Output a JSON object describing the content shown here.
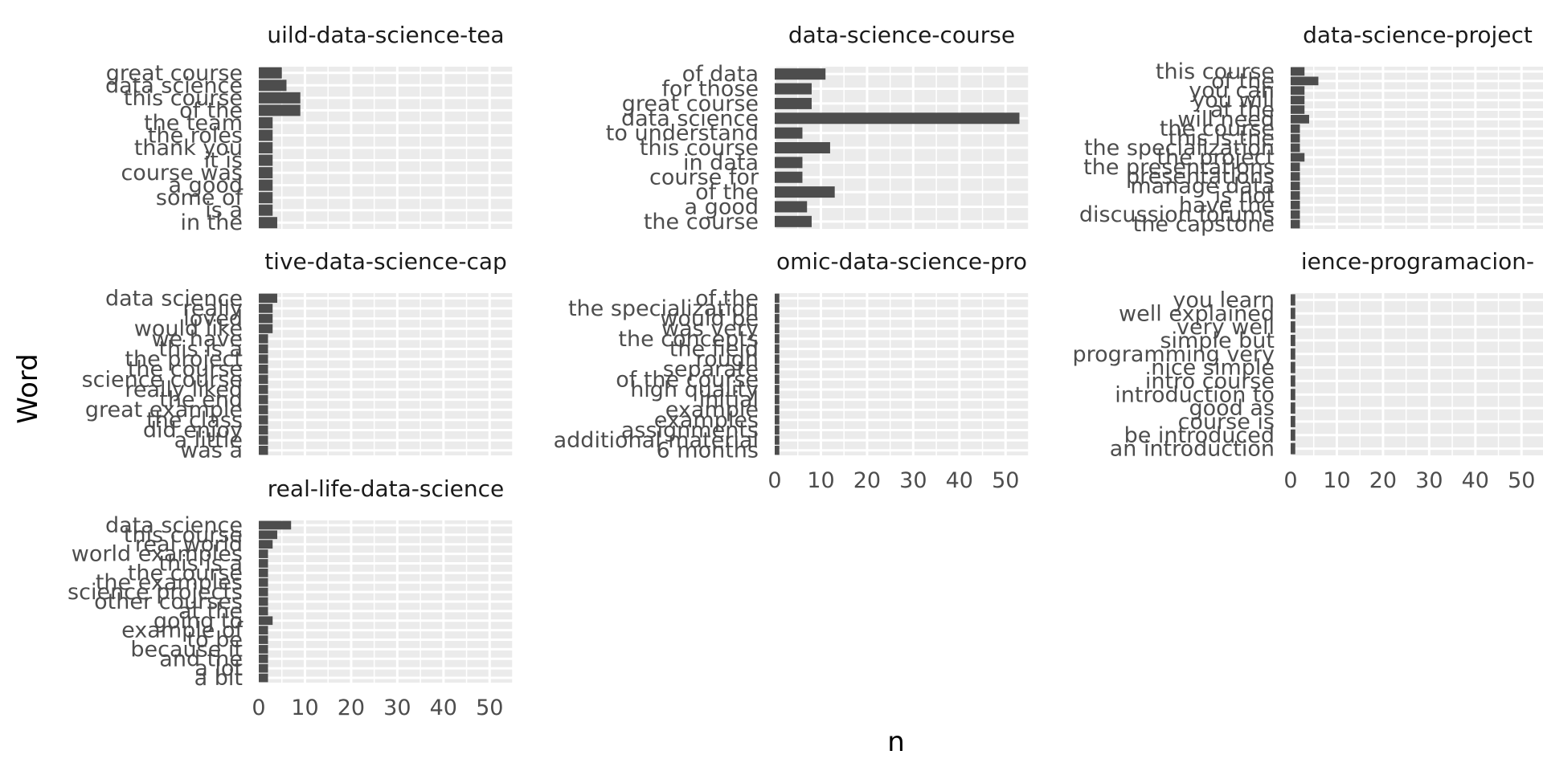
{
  "colors": {
    "panel_bg": "#ebebeb",
    "grid": "#ffffff",
    "bar": "#4d4d4d",
    "text": "#4d4d4d",
    "title": "#1a1a1a"
  },
  "chart_data": {
    "type": "bar",
    "orientation": "horizontal",
    "faceted": true,
    "xlabel": "n",
    "ylabel": "Word",
    "xlim": [
      0,
      55
    ],
    "x_ticks": [
      0,
      10,
      20,
      30,
      40,
      50
    ],
    "grid": true,
    "facets": [
      {
        "title": "uild-data-science-tea",
        "show_x_axis": false,
        "words": [
          "great course",
          "data science",
          "this course",
          "of the",
          "the team",
          "the roles",
          "thank you",
          "it is",
          "course was",
          "a good",
          "some of",
          "is a",
          "in the"
        ],
        "values": [
          5,
          6,
          9,
          9,
          3,
          3,
          3,
          3,
          3,
          3,
          3,
          3,
          4
        ]
      },
      {
        "title": "data-science-course",
        "show_x_axis": false,
        "words": [
          "of data",
          "for those",
          "great course",
          "data science",
          "to understand",
          "this course",
          "in data",
          "course for",
          "of the",
          "a good",
          "the course"
        ],
        "values": [
          11,
          8,
          8,
          53,
          6,
          12,
          6,
          6,
          13,
          7,
          8
        ]
      },
      {
        "title": "data-science-project",
        "show_x_axis": false,
        "words": [
          "this course",
          "of the",
          "you can",
          "you will",
          "at the",
          "will need",
          "the course",
          "this is the",
          "the specialization",
          "the project",
          "the presentations",
          "presentations",
          "manage data",
          "is not",
          "have the",
          "discussion forums",
          "the capstone"
        ],
        "values": [
          3,
          6,
          3,
          3,
          3,
          4,
          2,
          2,
          2,
          3,
          2,
          2,
          2,
          2,
          2,
          2,
          2
        ]
      },
      {
        "title": "tive-data-science-cap",
        "show_x_axis": false,
        "words": [
          "data science",
          "really",
          "loved",
          "would like",
          "we have",
          "this is a",
          "the project",
          "the course",
          "science course",
          "really liked",
          "the end",
          "great example",
          "the class",
          "did enjoy",
          "a little",
          "was a"
        ],
        "values": [
          4,
          3,
          3,
          3,
          2,
          2,
          2,
          2,
          2,
          2,
          2,
          2,
          2,
          2,
          2,
          2
        ]
      },
      {
        "title": "omic-data-science-pro",
        "show_x_axis": true,
        "words": [
          "of the",
          "the specialization",
          "would be",
          "was very",
          "the concepts",
          "the field",
          "rough",
          "separate",
          "of the course",
          "high quality",
          "initial",
          "example",
          "examples",
          "assignments",
          "additional material",
          "6 months"
        ],
        "values": [
          1,
          1,
          1,
          1,
          1,
          1,
          1,
          1,
          1,
          1,
          1,
          1,
          1,
          1,
          1,
          1
        ]
      },
      {
        "title": "ience-programacion-",
        "show_x_axis": true,
        "words": [
          "you learn",
          "well explained",
          "very well",
          "simple but",
          "programming very",
          "nice simple",
          "intro course",
          "introduction to",
          "good as",
          "course is",
          "be introduced",
          "an introduction"
        ],
        "values": [
          1,
          1,
          1,
          1,
          1,
          1,
          1,
          1,
          1,
          1,
          1,
          1
        ]
      },
      {
        "title": "real-life-data-science",
        "show_x_axis": true,
        "words": [
          "data science",
          "this course",
          "real world",
          "world examples",
          "this is a",
          "the course",
          "the examples",
          "science projects",
          "other courses",
          "at the",
          "going to",
          "example of",
          "to be",
          "because it",
          "and the",
          "a lot",
          "a bit"
        ],
        "values": [
          7,
          4,
          3,
          2,
          2,
          2,
          2,
          2,
          2,
          2,
          3,
          2,
          2,
          2,
          2,
          2,
          2
        ]
      }
    ]
  }
}
